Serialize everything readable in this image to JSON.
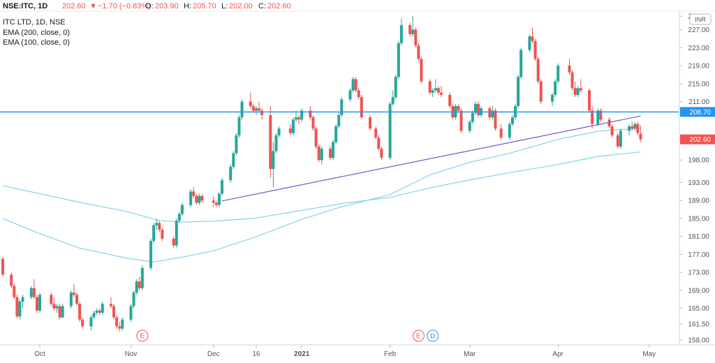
{
  "header": {
    "symbol": "NSE:ITC, 1D",
    "price": "202.60",
    "change_arrow": "▼",
    "change": "−1.70 (−0.83%)",
    "o_label": "O:",
    "o_value": "203.90",
    "h_label": "H:",
    "h_value": "205.70",
    "l_label": "L:",
    "l_value": "202.00",
    "c_label": "C:",
    "c_value": "202.60"
  },
  "legend": {
    "title": "ITC LTD, 1D, NSE",
    "ema200": "EMA (200, close, 0)",
    "ema100": "EMA (100, close, 0)"
  },
  "currency_badge": "INR",
  "earnings_markers": [
    {
      "label": "E",
      "date": "2020-11-06",
      "type": "earnings"
    },
    {
      "label": "E",
      "date": "2021-02-11",
      "type": "earnings"
    },
    {
      "label": "D",
      "date": "2021-02-16",
      "type": "dividend"
    }
  ],
  "colors": {
    "up": "#26a69a",
    "down": "#ef5350",
    "ema": "#7fd4ea",
    "horizontal_line": "#2196f3",
    "trendline": "#6a5acd",
    "price_label": "#ef5350",
    "level_label": "#2196f3"
  },
  "chart_data": {
    "type": "candlestick",
    "title": "ITC LTD, 1D, NSE",
    "ylim": [
      157.5,
      230.5
    ],
    "y_ticks": [
      "158.00",
      "161.50",
      "165.00",
      "169.00",
      "173.00",
      "177.00",
      "181.00",
      "185.00",
      "189.00",
      "193.00",
      "198.00",
      "202.60",
      "208.70",
      "211.00",
      "215.00",
      "219.00",
      "223.00",
      "227.00",
      "230.00"
    ],
    "x_labels": [
      {
        "label": "Oct",
        "date": "2020-10-01"
      },
      {
        "label": "Nov",
        "date": "2020-11-02"
      },
      {
        "label": "Dec",
        "date": "2020-12-01"
      },
      {
        "label": "16",
        "date": "2020-12-16"
      },
      {
        "label": "2021",
        "date": "2021-01-01",
        "bold": true
      },
      {
        "label": "Feb",
        "date": "2021-02-01"
      },
      {
        "label": "Mar",
        "date": "2021-03-01"
      },
      {
        "label": "Apr",
        "date": "2021-04-01"
      },
      {
        "label": "May",
        "date": "2021-05-03"
      }
    ],
    "x_range": [
      "2020-09-18",
      "2021-05-07"
    ],
    "last_price": 202.6,
    "horizontal_level": 208.7,
    "trendline": {
      "start_date": "2020-12-04",
      "start_value": 188.9,
      "end_date": "2021-04-30",
      "end_value": 207.8
    },
    "candles": [
      [
        "2020-09-18",
        176,
        176.5,
        172,
        172.5
      ],
      [
        "2020-09-21",
        172.5,
        173,
        169.5,
        170
      ],
      [
        "2020-09-22",
        170,
        170.5,
        167,
        167.5
      ],
      [
        "2020-09-23",
        167.5,
        168,
        162.8,
        163.2
      ],
      [
        "2020-09-24",
        163.2,
        167,
        162.5,
        166.5
      ],
      [
        "2020-09-25",
        166.5,
        168,
        165,
        167.5
      ],
      [
        "2020-09-28",
        167.5,
        170,
        167,
        169.5
      ],
      [
        "2020-09-29",
        169.5,
        171.5,
        167,
        167.5
      ],
      [
        "2020-09-30",
        167.5,
        168,
        164,
        164.5
      ],
      [
        "2020-10-01",
        164.5,
        168.5,
        164,
        168
      ],
      [
        "2020-10-05",
        168,
        168.5,
        165.5,
        166
      ],
      [
        "2020-10-06",
        166,
        167.5,
        164.5,
        165
      ],
      [
        "2020-10-07",
        165,
        166,
        164,
        165.5
      ],
      [
        "2020-10-08",
        165.5,
        166,
        162.5,
        163
      ],
      [
        "2020-10-09",
        163,
        166,
        162.8,
        165.5
      ],
      [
        "2020-10-12",
        165.5,
        169,
        165,
        168.5
      ],
      [
        "2020-10-13",
        168.5,
        170.5,
        167.5,
        168
      ],
      [
        "2020-10-14",
        168,
        168.5,
        165.5,
        166
      ],
      [
        "2020-10-15",
        166,
        166.5,
        162,
        162.5
      ],
      [
        "2020-10-16",
        162.5,
        163,
        160.5,
        161
      ],
      [
        "2020-10-19",
        161,
        163.5,
        160,
        163
      ],
      [
        "2020-10-20",
        163,
        164.5,
        162.5,
        164
      ],
      [
        "2020-10-21",
        164,
        165,
        163.5,
        164.5
      ],
      [
        "2020-10-22",
        164.5,
        165,
        163.5,
        164
      ],
      [
        "2020-10-23",
        164,
        166.5,
        163.5,
        166
      ],
      [
        "2020-10-26",
        166,
        167.5,
        165,
        165.5
      ],
      [
        "2020-10-27",
        165.5,
        166,
        162.5,
        163
      ],
      [
        "2020-10-28",
        163,
        163.5,
        160.5,
        161
      ],
      [
        "2020-10-29",
        161,
        162,
        159.8,
        160.5
      ],
      [
        "2020-10-30",
        160.5,
        163,
        160,
        162.5
      ],
      [
        "2020-11-02",
        162.5,
        166,
        162,
        165.5
      ],
      [
        "2020-11-03",
        165.5,
        169,
        165,
        168.5
      ],
      [
        "2020-11-04",
        168.5,
        171.5,
        168,
        171
      ],
      [
        "2020-11-05",
        171,
        172,
        169,
        169.5
      ],
      [
        "2020-11-06",
        169.5,
        174.5,
        169,
        174
      ],
      [
        "2020-11-09",
        174,
        180.5,
        173.5,
        180
      ],
      [
        "2020-11-10",
        180,
        184,
        179.5,
        183.5
      ],
      [
        "2020-11-11",
        183.5,
        185,
        182.5,
        184
      ],
      [
        "2020-11-12",
        184,
        184.5,
        182,
        182.5
      ],
      [
        "2020-11-13",
        182.5,
        183,
        180,
        180.5
      ],
      [
        "2020-11-17",
        180.5,
        181,
        178.5,
        179
      ],
      [
        "2020-11-18",
        179,
        185,
        178.5,
        184.5
      ],
      [
        "2020-11-19",
        184.5,
        186.5,
        184,
        186
      ],
      [
        "2020-11-20",
        186,
        188.5,
        185.5,
        188
      ],
      [
        "2020-11-23",
        188,
        191.5,
        187.5,
        191
      ],
      [
        "2020-11-24",
        191,
        192,
        189.5,
        190
      ],
      [
        "2020-11-25",
        190,
        190.5,
        188,
        188.5
      ],
      [
        "2020-11-26",
        188.5,
        190.5,
        188,
        190
      ],
      [
        "2020-11-27",
        190,
        190.5,
        188.5,
        189
      ],
      [
        "2020-12-01",
        189,
        190,
        187.5,
        188.5
      ],
      [
        "2020-12-02",
        188.5,
        189,
        187.5,
        188
      ],
      [
        "2020-12-03",
        188,
        191,
        187.5,
        190.5
      ],
      [
        "2020-12-04",
        190.5,
        194,
        190,
        193.5
      ],
      [
        "2020-12-07",
        193.5,
        197,
        193,
        196.5
      ],
      [
        "2020-12-08",
        196.5,
        200,
        196,
        199.5
      ],
      [
        "2020-12-09",
        199.5,
        204,
        199,
        203.5
      ],
      [
        "2020-12-10",
        203.5,
        208,
        203,
        207.5
      ],
      [
        "2020-12-11",
        207.5,
        211.5,
        207,
        211
      ],
      [
        "2020-12-14",
        211,
        213,
        209.5,
        210
      ],
      [
        "2020-12-15",
        210,
        210.5,
        208.5,
        209
      ],
      [
        "2020-12-16",
        209,
        210,
        208,
        209.5
      ],
      [
        "2020-12-17",
        209.5,
        211,
        208.5,
        209
      ],
      [
        "2020-12-18",
        209,
        209.5,
        207,
        208
      ],
      [
        "2020-12-21",
        208,
        210,
        194,
        196
      ],
      [
        "2020-12-22",
        196,
        202,
        192,
        200
      ],
      [
        "2020-12-23",
        200,
        204,
        199.5,
        203.5
      ],
      [
        "2020-12-24",
        203.5,
        205.5,
        203,
        205
      ],
      [
        "2020-12-28",
        205,
        206,
        203.5,
        204
      ],
      [
        "2020-12-29",
        204,
        207.5,
        203.5,
        207
      ],
      [
        "2020-12-30",
        207,
        209,
        206.5,
        207.5
      ],
      [
        "2020-12-31",
        207.5,
        208,
        206,
        207
      ],
      [
        "2021-01-01",
        207,
        209.5,
        206.5,
        209
      ],
      [
        "2021-01-04",
        209,
        210,
        207,
        207.5
      ],
      [
        "2021-01-05",
        207.5,
        208,
        204.5,
        205
      ],
      [
        "2021-01-06",
        205,
        205.5,
        200.5,
        201
      ],
      [
        "2021-01-07",
        201,
        201.5,
        197.5,
        198
      ],
      [
        "2021-01-08",
        198,
        201,
        197,
        200.5
      ],
      [
        "2021-01-11",
        200.5,
        201,
        198,
        198.5
      ],
      [
        "2021-01-12",
        198.5,
        202.5,
        198,
        202
      ],
      [
        "2021-01-13",
        202,
        206,
        201.5,
        205.5
      ],
      [
        "2021-01-14",
        205.5,
        208.5,
        205,
        208
      ],
      [
        "2021-01-15",
        208,
        212,
        207.5,
        211.5
      ],
      [
        "2021-01-18",
        211.5,
        214,
        211,
        213.5
      ],
      [
        "2021-01-19",
        213.5,
        216.5,
        213,
        216
      ],
      [
        "2021-01-20",
        216,
        216.5,
        213,
        213.5
      ],
      [
        "2021-01-21",
        213.5,
        214,
        211.5,
        212
      ],
      [
        "2021-01-22",
        212,
        212.5,
        207,
        207.5
      ],
      [
        "2021-01-25",
        207.5,
        208,
        204.5,
        205
      ],
      [
        "2021-01-27",
        205,
        205.5,
        202.5,
        203
      ],
      [
        "2021-01-28",
        203,
        203.5,
        200,
        200.5
      ],
      [
        "2021-01-29",
        200.5,
        201,
        198,
        198.5
      ],
      [
        "2021-02-01",
        198.5,
        211,
        198,
        210.5
      ],
      [
        "2021-02-02",
        210.5,
        213.5,
        210,
        212
      ],
      [
        "2021-02-03",
        212,
        217,
        211.5,
        216.5
      ],
      [
        "2021-02-04",
        216.5,
        224.5,
        216,
        224
      ],
      [
        "2021-02-05",
        224,
        229.5,
        223.5,
        228
      ],
      [
        "2021-02-08",
        228,
        228.5,
        225.5,
        226
      ],
      [
        "2021-02-09",
        226,
        230,
        225.5,
        227
      ],
      [
        "2021-02-10",
        227,
        227.5,
        223,
        223.5
      ],
      [
        "2021-02-11",
        223.5,
        224,
        220,
        220.5
      ],
      [
        "2021-02-12",
        220.5,
        221,
        215,
        215.5
      ],
      [
        "2021-02-15",
        215.5,
        216,
        212.5,
        213
      ],
      [
        "2021-02-16",
        213,
        214,
        212,
        213.5
      ],
      [
        "2021-02-17",
        213.5,
        216,
        213,
        214
      ],
      [
        "2021-02-18",
        214,
        214.5,
        212.5,
        213
      ],
      [
        "2021-02-19",
        213,
        214.5,
        212,
        212.5
      ],
      [
        "2021-02-22",
        212.5,
        213,
        209.5,
        210
      ],
      [
        "2021-02-23",
        210,
        210.5,
        207,
        207.5
      ],
      [
        "2021-02-24",
        207.5,
        210.5,
        207,
        210
      ],
      [
        "2021-02-25",
        210,
        210.5,
        208.5,
        209
      ],
      [
        "2021-02-26",
        209,
        209.5,
        204,
        204.5
      ],
      [
        "2021-03-01",
        204.5,
        207,
        204,
        206.5
      ],
      [
        "2021-03-02",
        206.5,
        209,
        206,
        208.5
      ],
      [
        "2021-03-03",
        208.5,
        211,
        208,
        210.5
      ],
      [
        "2021-03-04",
        210.5,
        211,
        207.5,
        208
      ],
      [
        "2021-03-05",
        208,
        210,
        207.5,
        209.5
      ],
      [
        "2021-03-08",
        209.5,
        210,
        207,
        207.5
      ],
      [
        "2021-03-09",
        207.5,
        210,
        207,
        209
      ],
      [
        "2021-03-10",
        209,
        209.5,
        204.5,
        205
      ],
      [
        "2021-03-12",
        205,
        206,
        202.5,
        203
      ],
      [
        "2021-03-15",
        203,
        206.5,
        202.5,
        206
      ],
      [
        "2021-03-16",
        206,
        208,
        205.5,
        207.5
      ],
      [
        "2021-03-17",
        207.5,
        210.5,
        207,
        210
      ],
      [
        "2021-03-18",
        210,
        217,
        209.5,
        216.5
      ],
      [
        "2021-03-19",
        216.5,
        223,
        216,
        222.5
      ],
      [
        "2021-03-22",
        222.5,
        226,
        222,
        225.5
      ],
      [
        "2021-03-23",
        225.5,
        227.5,
        224,
        224.5
      ],
      [
        "2021-03-24",
        224.5,
        225,
        220,
        220.5
      ],
      [
        "2021-03-25",
        220.5,
        221,
        215,
        215.5
      ],
      [
        "2021-03-26",
        215.5,
        216,
        210.5,
        211
      ],
      [
        "2021-03-30",
        211,
        213,
        210,
        212.5
      ],
      [
        "2021-03-31",
        212.5,
        216,
        212,
        215.5
      ],
      [
        "2021-04-01",
        215.5,
        219.5,
        215,
        219
      ],
      [
        "2021-04-05",
        219,
        220.5,
        217,
        217.5
      ],
      [
        "2021-04-06",
        217.5,
        218,
        213.5,
        214
      ],
      [
        "2021-04-07",
        214,
        215.5,
        212,
        212.5
      ],
      [
        "2021-04-08",
        212.5,
        214.5,
        212,
        214
      ],
      [
        "2021-04-09",
        214,
        216,
        213,
        213.5
      ],
      [
        "2021-04-12",
        213.5,
        214,
        208.5,
        209
      ],
      [
        "2021-04-13",
        209,
        210,
        205,
        206
      ],
      [
        "2021-04-15",
        206,
        209.5,
        205.5,
        209
      ],
      [
        "2021-04-16",
        209,
        209.5,
        206.5,
        207
      ],
      [
        "2021-04-19",
        207,
        207.5,
        205,
        205.5
      ],
      [
        "2021-04-20",
        205.5,
        206,
        203,
        203.5
      ],
      [
        "2021-04-22",
        203.5,
        204,
        200.5,
        201
      ],
      [
        "2021-04-23",
        201,
        205,
        200.5,
        204.5
      ],
      [
        "2021-04-26",
        204.5,
        206,
        203.5,
        205.5
      ],
      [
        "2021-04-27",
        205.5,
        206.5,
        204.5,
        205
      ],
      [
        "2021-04-28",
        205,
        206.5,
        204.5,
        206
      ],
      [
        "2021-04-29",
        206,
        206.5,
        203.5,
        204
      ],
      [
        "2021-04-30",
        203.9,
        205.7,
        202,
        202.6
      ]
    ],
    "ema_200": [
      [
        "2020-09-18",
        192.3
      ],
      [
        "2020-10-01",
        190.5
      ],
      [
        "2020-10-15",
        188.6
      ],
      [
        "2020-11-01",
        186.5
      ],
      [
        "2020-11-12",
        184.5
      ],
      [
        "2020-11-20",
        184.2
      ],
      [
        "2020-12-01",
        184.4
      ],
      [
        "2020-12-15",
        185.0
      ],
      [
        "2021-01-01",
        186.8
      ],
      [
        "2021-01-15",
        188.3
      ],
      [
        "2021-02-01",
        189.7
      ],
      [
        "2021-02-15",
        191.8
      ],
      [
        "2021-03-01",
        193.6
      ],
      [
        "2021-03-15",
        195.2
      ],
      [
        "2021-04-01",
        197.0
      ],
      [
        "2021-04-15",
        198.8
      ],
      [
        "2021-04-30",
        199.8
      ]
    ],
    "ema_100": [
      [
        "2020-09-18",
        185.0
      ],
      [
        "2020-10-01",
        181.6
      ],
      [
        "2020-10-15",
        178.4
      ],
      [
        "2020-11-01",
        176.1
      ],
      [
        "2020-11-10",
        175.3
      ],
      [
        "2020-11-20",
        176.4
      ],
      [
        "2020-12-01",
        177.8
      ],
      [
        "2020-12-15",
        180.7
      ],
      [
        "2021-01-01",
        184.8
      ],
      [
        "2021-01-15",
        187.6
      ],
      [
        "2021-02-01",
        190.3
      ],
      [
        "2021-02-15",
        194.7
      ],
      [
        "2021-03-01",
        197.5
      ],
      [
        "2021-03-15",
        199.5
      ],
      [
        "2021-04-01",
        202.6
      ],
      [
        "2021-04-15",
        204.4
      ],
      [
        "2021-04-30",
        205.1
      ]
    ]
  }
}
